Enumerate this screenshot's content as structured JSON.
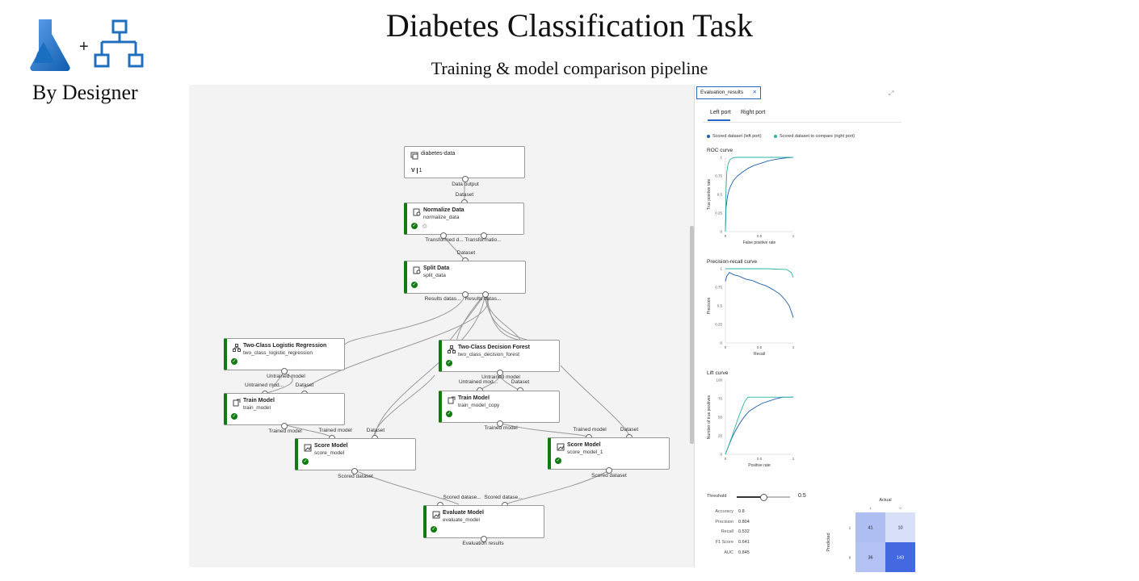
{
  "header": {
    "title": "Diabetes Classification Task",
    "subtitle": "Training & model comparison pipeline",
    "byline": "By Designer"
  },
  "pipeline": {
    "nodes": {
      "data": {
        "title": "diabetes-data",
        "version": "1"
      },
      "normalize": {
        "title": "Normalize Data",
        "sub": "normalize_data"
      },
      "split": {
        "title": "Split Data",
        "sub": "split_data"
      },
      "logreg": {
        "title": "Two-Class Logistic Regression",
        "sub": "two_class_logistic_regression"
      },
      "forest": {
        "title": "Two-Class Decision Forest",
        "sub": "two_class_decision_forest"
      },
      "train1": {
        "title": "Train Model",
        "sub": "train_model"
      },
      "train2": {
        "title": "Train Model",
        "sub": "train_model_copy"
      },
      "score1": {
        "title": "Score Model",
        "sub": "score_model"
      },
      "score2": {
        "title": "Score Model",
        "sub": "score_model_1"
      },
      "evaluate": {
        "title": "Evaluate Model",
        "sub": "evaluate_model"
      }
    },
    "ports": {
      "data_output": "Data output",
      "dataset": "Dataset",
      "transformed": "Transformed d...",
      "transformation": "Transformatio...",
      "results1": "Results datas...",
      "results2": "Results datas...",
      "untrained_model": "Untrained model",
      "untrained_mod": "Untrained mod...",
      "trained_model": "Trained model",
      "scored_dataset": "Scored dataset",
      "scored_dataset_trunc": "Scored datase...",
      "evaluation_results": "Evaluation results"
    }
  },
  "panel": {
    "tab_title": "Evaluation_results",
    "port_tabs": [
      "Left port",
      "Right port"
    ],
    "legend": {
      "left": "Scored dataset (left port)",
      "right": "Scored dataset to compare (right port)"
    },
    "colors": {
      "left": "#1f5fb0",
      "right": "#2bb5a3",
      "accent": "#2b66c5"
    },
    "charts": {
      "roc": {
        "title": "ROC curve",
        "xlabel": "False positive rate",
        "ylabel": "True positive rate"
      },
      "pr": {
        "title": "Precision-recall curve",
        "xlabel": "Recall",
        "ylabel": "Precision"
      },
      "lift": {
        "title": "Lift curve",
        "xlabel": "Positive rate",
        "ylabel": "Number of true positives"
      }
    },
    "threshold": {
      "label": "Threshold",
      "value": 0.5,
      "display": "0.5"
    },
    "metrics": [
      {
        "name": "Accuracy",
        "value": "0.8"
      },
      {
        "name": "Precision",
        "value": "0.804"
      },
      {
        "name": "Recall",
        "value": "0.532"
      },
      {
        "name": "F1 Score",
        "value": "0.641"
      },
      {
        "name": "AUC",
        "value": "0.845"
      }
    ],
    "confusion": {
      "actual_label": "Actual",
      "predicted_label": "Predicted",
      "actual_ticks": [
        "1",
        "0"
      ],
      "predicted_ticks": [
        "1",
        "0"
      ],
      "cells": [
        [
          41,
          10
        ],
        [
          36,
          143
        ]
      ]
    }
  },
  "chart_data": [
    {
      "type": "line",
      "title": "ROC curve",
      "xlabel": "False positive rate",
      "ylabel": "True positive rate",
      "xlim": [
        0,
        1
      ],
      "ylim": [
        0,
        1
      ],
      "xticks": [
        "0",
        "0.5",
        "1"
      ],
      "yticks": [
        "0",
        "0.25",
        "0.5",
        "0.75",
        "1"
      ],
      "series": [
        {
          "x": [
            0,
            0.01,
            0.03,
            0.05,
            0.08,
            0.12,
            0.18,
            0.25,
            0.33,
            0.42,
            0.52,
            0.62,
            0.72,
            0.82,
            0.91,
            1
          ],
          "y": [
            0,
            0.32,
            0.47,
            0.55,
            0.62,
            0.69,
            0.75,
            0.8,
            0.85,
            0.89,
            0.92,
            0.95,
            0.97,
            0.985,
            0.995,
            1
          ]
        },
        {
          "x": [
            0,
            0.01,
            0.02,
            0.04,
            0.07,
            0.1,
            0.15,
            0.3,
            0.5,
            0.75,
            1
          ],
          "y": [
            0,
            0.55,
            0.8,
            0.92,
            0.97,
            0.99,
            1,
            1,
            1,
            1,
            1
          ]
        }
      ]
    },
    {
      "type": "line",
      "title": "Precision-recall curve",
      "xlabel": "Recall",
      "ylabel": "Precision",
      "xlim": [
        0,
        1
      ],
      "ylim": [
        0,
        1
      ],
      "xticks": [
        "0",
        "0.5",
        "1"
      ],
      "yticks": [
        "0",
        "0.25",
        "0.5",
        "0.75",
        "1"
      ],
      "series": [
        {
          "x": [
            0,
            0.02,
            0.06,
            0.12,
            0.2,
            0.3,
            0.4,
            0.5,
            0.6,
            0.7,
            0.8,
            0.88,
            0.94,
            0.98,
            1
          ],
          "y": [
            0.83,
            0.9,
            0.95,
            0.92,
            0.9,
            0.86,
            0.84,
            0.8,
            0.77,
            0.72,
            0.66,
            0.58,
            0.5,
            0.4,
            0.34
          ]
        },
        {
          "x": [
            0,
            0.3,
            0.6,
            0.9,
            0.97,
            1
          ],
          "y": [
            1,
            1,
            1,
            0.99,
            0.95,
            0.88
          ]
        }
      ]
    },
    {
      "type": "line",
      "title": "Lift curve",
      "xlabel": "Positive rate",
      "ylabel": "Number of true positives",
      "xlim": [
        0,
        1
      ],
      "ylim": [
        0,
        100
      ],
      "xticks": [
        "0",
        "0.5",
        "1"
      ],
      "yticks": [
        "0",
        "25",
        "50",
        "75",
        "100"
      ],
      "series": [
        {
          "x": [
            0,
            0.05,
            0.1,
            0.15,
            0.2,
            0.25,
            0.3,
            0.35,
            0.45,
            0.55,
            0.65,
            0.75,
            0.85,
            1
          ],
          "y": [
            0,
            12,
            23,
            32,
            40,
            47,
            53,
            58,
            64,
            69,
            72,
            75,
            77,
            77
          ]
        },
        {
          "x": [
            0,
            0.1,
            0.2,
            0.28,
            0.33,
            0.45,
            0.6,
            0.8,
            1
          ],
          "y": [
            0,
            25,
            52,
            70,
            77,
            77,
            77,
            77,
            77
          ]
        }
      ]
    }
  ]
}
